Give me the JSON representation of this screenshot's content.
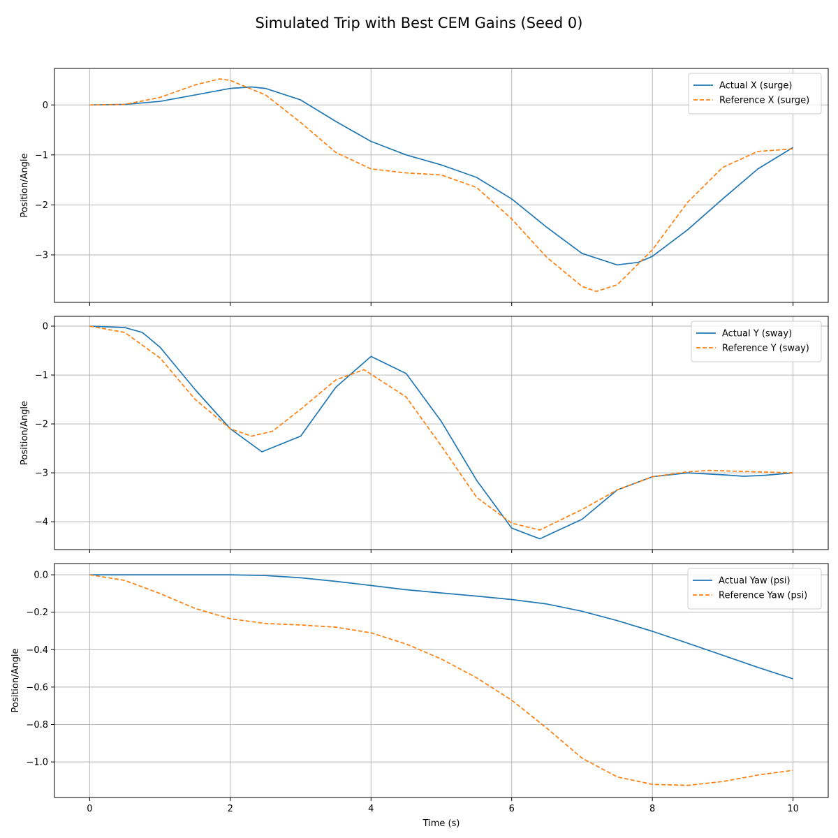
{
  "figure_title": "Simulated Trip with Best CEM Gains (Seed 0)",
  "colors": {
    "actual": "#1f77b4",
    "reference": "#ff7f0e",
    "grid": "#b0b0b0"
  },
  "chart_data": [
    {
      "type": "line",
      "title": "",
      "xlabel": "",
      "ylabel": "Position/Angle",
      "xlim": [
        -0.5,
        10.5
      ],
      "ylim": [
        -3.95,
        0.73
      ],
      "xticks": [
        0,
        2,
        4,
        6,
        8,
        10
      ],
      "yticks": [
        0,
        -1,
        -2,
        -3
      ],
      "ytick_labels": [
        "0",
        "−1",
        "−2",
        "−3"
      ],
      "grid": true,
      "legend_position": "top-right",
      "series": [
        {
          "name": "Actual X (surge)",
          "style": "solid",
          "x": [
            0,
            0.5,
            1,
            1.5,
            2,
            2.3,
            2.5,
            3,
            3.5,
            4,
            4.5,
            5,
            5.5,
            6,
            6.5,
            7,
            7.5,
            7.8,
            8,
            8.5,
            9,
            9.5,
            10
          ],
          "y": [
            0,
            0.01,
            0.07,
            0.2,
            0.33,
            0.36,
            0.33,
            0.1,
            -0.33,
            -0.73,
            -1.0,
            -1.2,
            -1.45,
            -1.88,
            -2.45,
            -2.97,
            -3.2,
            -3.15,
            -3.03,
            -2.5,
            -1.88,
            -1.28,
            -0.85
          ]
        },
        {
          "name": "Reference X (surge)",
          "style": "dashed",
          "x": [
            0,
            0.5,
            1,
            1.5,
            1.85,
            2,
            2.5,
            3,
            3.5,
            4,
            4.5,
            5,
            5.5,
            6,
            6.5,
            7,
            7.2,
            7.5,
            8,
            8.5,
            9,
            9.5,
            10
          ],
          "y": [
            0,
            0.01,
            0.15,
            0.4,
            0.52,
            0.49,
            0.2,
            -0.35,
            -0.95,
            -1.28,
            -1.36,
            -1.4,
            -1.65,
            -2.28,
            -3.05,
            -3.63,
            -3.73,
            -3.6,
            -2.9,
            -1.95,
            -1.25,
            -0.93,
            -0.88
          ]
        }
      ]
    },
    {
      "type": "line",
      "title": "",
      "xlabel": "",
      "ylabel": "Position/Angle",
      "xlim": [
        -0.5,
        10.5
      ],
      "ylim": [
        -4.57,
        0.2
      ],
      "xticks": [
        0,
        2,
        4,
        6,
        8,
        10
      ],
      "yticks": [
        0,
        -1,
        -2,
        -3,
        -4
      ],
      "ytick_labels": [
        "0",
        "−1",
        "−2",
        "−3",
        "−4"
      ],
      "grid": true,
      "legend_position": "top-right",
      "series": [
        {
          "name": "Actual Y (sway)",
          "style": "solid",
          "x": [
            0,
            0.5,
            0.75,
            1,
            1.5,
            2,
            2.45,
            3,
            3.5,
            4,
            4.5,
            5,
            5.5,
            6,
            6.4,
            7,
            7.5,
            8,
            8.5,
            9,
            9.3,
            9.6,
            10
          ],
          "y": [
            0,
            -0.03,
            -0.13,
            -0.43,
            -1.3,
            -2.1,
            -2.57,
            -2.25,
            -1.25,
            -0.62,
            -0.97,
            -1.95,
            -3.15,
            -4.13,
            -4.35,
            -3.95,
            -3.35,
            -3.08,
            -3.0,
            -3.04,
            -3.07,
            -3.05,
            -3.0
          ]
        },
        {
          "name": "Reference Y (sway)",
          "style": "dashed",
          "x": [
            0,
            0.5,
            1,
            1.5,
            2,
            2.3,
            2.6,
            3,
            3.5,
            3.9,
            4.5,
            5,
            5.5,
            6,
            6.4,
            7,
            7.5,
            8,
            8.5,
            8.8,
            9.5,
            10
          ],
          "y": [
            0,
            -0.13,
            -0.65,
            -1.5,
            -2.1,
            -2.25,
            -2.15,
            -1.7,
            -1.1,
            -0.89,
            -1.45,
            -2.45,
            -3.5,
            -4.03,
            -4.17,
            -3.75,
            -3.35,
            -3.08,
            -2.98,
            -2.95,
            -2.98,
            -3.0
          ]
        }
      ]
    },
    {
      "type": "line",
      "title": "",
      "xlabel": "Time (s)",
      "ylabel": "Position/Angle",
      "xlim": [
        -0.5,
        10.5
      ],
      "ylim": [
        -1.19,
        0.06
      ],
      "xticks": [
        0,
        2,
        4,
        6,
        8,
        10
      ],
      "yticks": [
        0.0,
        -0.2,
        -0.4,
        -0.6,
        -0.8,
        -1.0
      ],
      "ytick_labels": [
        "0.0",
        "−0.2",
        "−0.4",
        "−0.6",
        "−0.8",
        "−1.0"
      ],
      "grid": true,
      "legend_position": "top-right",
      "series": [
        {
          "name": "Actual Yaw (psi)",
          "style": "solid",
          "x": [
            0,
            1,
            2,
            2.5,
            3,
            3.5,
            4,
            4.5,
            5,
            5.5,
            6,
            6.5,
            7,
            7.5,
            8,
            8.5,
            9,
            9.5,
            10
          ],
          "y": [
            0,
            0,
            0,
            -0.004,
            -0.016,
            -0.035,
            -0.057,
            -0.08,
            -0.097,
            -0.114,
            -0.132,
            -0.156,
            -0.195,
            -0.245,
            -0.302,
            -0.365,
            -0.43,
            -0.495,
            -0.556
          ]
        },
        {
          "name": "Reference Yaw (psi)",
          "style": "dashed",
          "x": [
            0,
            0.5,
            1,
            1.5,
            2,
            2.5,
            3,
            3.5,
            4,
            4.5,
            5,
            5.5,
            6,
            6.5,
            7,
            7.5,
            8,
            8.5,
            9,
            9.5,
            10
          ],
          "y": [
            0,
            -0.03,
            -0.1,
            -0.18,
            -0.235,
            -0.26,
            -0.268,
            -0.28,
            -0.31,
            -0.37,
            -0.45,
            -0.55,
            -0.67,
            -0.82,
            -0.98,
            -1.08,
            -1.12,
            -1.125,
            -1.105,
            -1.07,
            -1.045
          ]
        }
      ]
    }
  ]
}
